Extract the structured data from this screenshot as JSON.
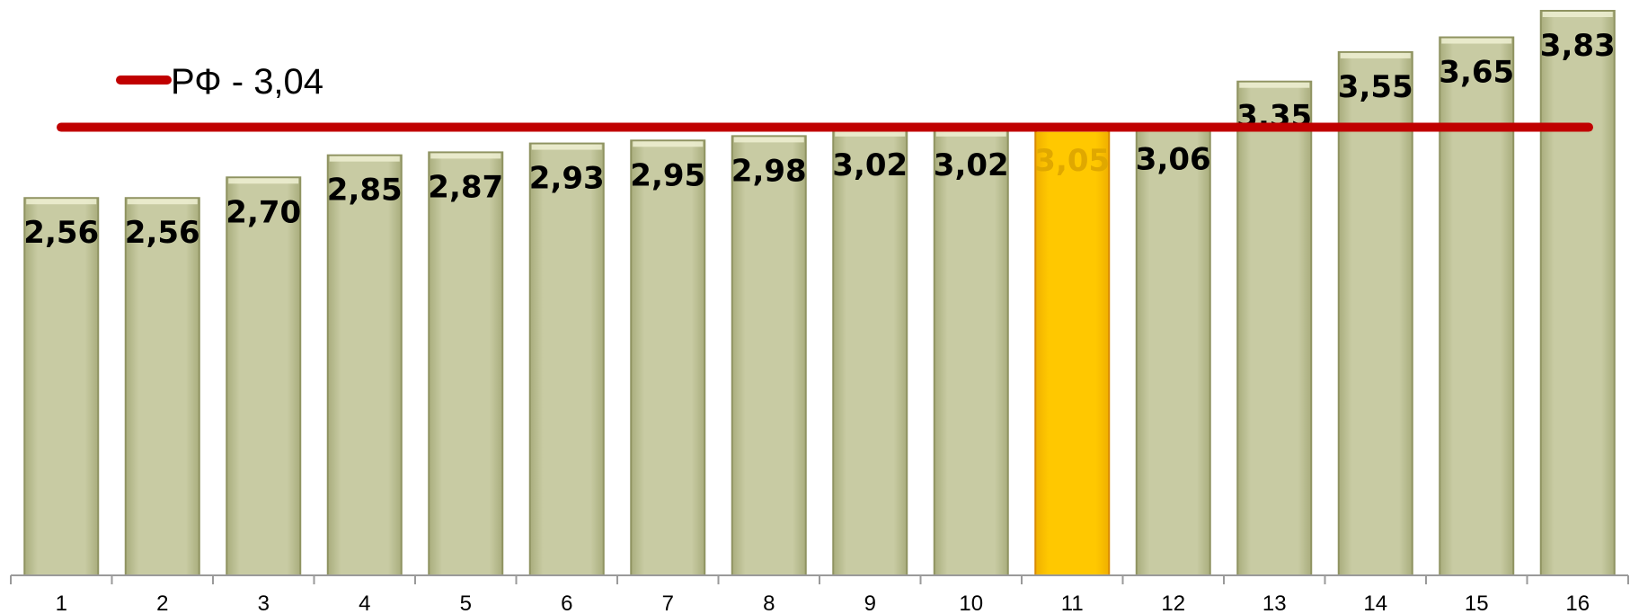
{
  "chart_data": {
    "type": "bar",
    "categories": [
      "1",
      "2",
      "3",
      "4",
      "5",
      "6",
      "7",
      "8",
      "9",
      "10",
      "11",
      "12",
      "13",
      "14",
      "15",
      "16"
    ],
    "values": [
      2.56,
      2.56,
      2.7,
      2.85,
      2.87,
      2.93,
      2.95,
      2.98,
      3.02,
      3.02,
      3.05,
      3.06,
      3.35,
      3.55,
      3.65,
      3.83
    ],
    "value_labels": [
      "2,56",
      "2,56",
      "2,70",
      "2,85",
      "2,87",
      "2,93",
      "2,95",
      "2,98",
      "3,02",
      "3,02",
      "3,05",
      "3,06",
      "3,35",
      "3,55",
      "3,65",
      "3,83"
    ],
    "highlight_index": 10,
    "reference_line": {
      "value": 3.04,
      "label": "РФ - 3,04",
      "color": "#c00000"
    },
    "ylim": [
      0,
      3.83
    ],
    "title": "",
    "xlabel": "",
    "ylabel": "",
    "grid": false,
    "legend_position": "top-left",
    "colors": {
      "bar": "#c8cba3",
      "bar_edge": "#8f9361",
      "highlight": "#ffc800",
      "highlight_edge": "#d98a00",
      "highlight_label": "#e0a800",
      "label": "#000000",
      "axis": "#9a9a9a"
    }
  }
}
